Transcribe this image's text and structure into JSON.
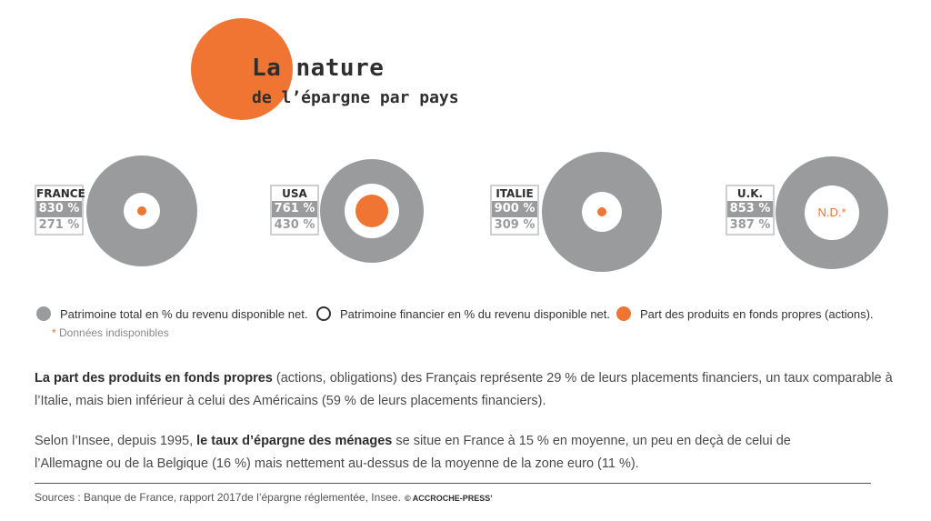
{
  "title": {
    "line1": "La nature",
    "line2": "de l’épargne par pays"
  },
  "colors": {
    "orange": "#f07432",
    "grey": "#999b9d",
    "white": "#ffffff"
  },
  "chart_data": {
    "type": "circles",
    "series": [
      {
        "name": "Patrimoine total en % du revenu disponible net.",
        "values": [
          830,
          761,
          900,
          853
        ]
      },
      {
        "name": "Patrimoine financier en % du revenu disponible net.",
        "values": [
          271,
          430,
          309,
          387
        ]
      },
      {
        "name": "Part des produits en fonds propres (actions).",
        "values": [
          "small",
          "large",
          "small",
          "N.D.*"
        ]
      }
    ],
    "countries": [
      {
        "name": "FRANCE",
        "total": "830 %",
        "fin": "271 %"
      },
      {
        "name": "USA",
        "total": "761 %",
        "fin": "430 %"
      },
      {
        "name": "ITALIE",
        "total": "900 %",
        "fin": "309 %"
      },
      {
        "name": "U.K.",
        "total": "853 %",
        "fin": "387 %",
        "nd": "N.D.*"
      }
    ]
  },
  "legend": {
    "total": "Patrimoine total en % du revenu disponible net.",
    "fin": "Patrimoine financier en % du revenu disponible net.",
    "equity": "Part des produits en fonds propres (actions).",
    "note_star": "*",
    "note": " Données indisponibles"
  },
  "para1": {
    "bold": "La part des produits en fonds propres",
    "text": " (actions, obligations) des Français représente 29 % de leurs placements financiers, un taux comparable à l’Italie, mais bien inférieur à celui des Américains (59 % de leurs placements financiers)."
  },
  "para2": {
    "pre": "Selon l’Insee, depuis 1995, ",
    "bold": "le taux d’épargne des ménages",
    "post": " se situe en France à 15 % en moyenne, un peu en deçà de celui de l’Allemagne ou de la Belgique (16 %) mais nettement au-dessus de la moyenne de la zone euro (11 %)."
  },
  "sources": "Sources : Banque de France, rapport 2017de l’épargne réglementée, Insee.",
  "copyright": "© ACCROCHE-PRESS’"
}
